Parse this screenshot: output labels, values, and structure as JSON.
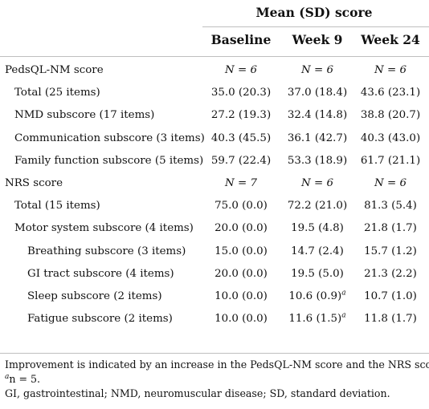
{
  "header": {
    "group": "Mean (SD) score",
    "columns": [
      "Baseline",
      "Week 9",
      "Week 24"
    ]
  },
  "rows": [
    {
      "label": "PedsQL-NM score",
      "indent": 0,
      "values": [
        "N = 6",
        "N = 6",
        "N = 6"
      ],
      "n_row": true
    },
    {
      "label": "Total (25 items)",
      "indent": 1,
      "values": [
        "35.0 (20.3)",
        "37.0 (18.4)",
        "43.6 (23.1)"
      ]
    },
    {
      "label": "NMD subscore (17 items)",
      "indent": 1,
      "values": [
        "27.2 (19.3)",
        "32.4 (14.8)",
        "38.8 (20.7)"
      ]
    },
    {
      "label": "Communication subscore (3 items)",
      "indent": 1,
      "values": [
        "40.3 (45.5)",
        "36.1 (42.7)",
        "40.3 (43.0)"
      ]
    },
    {
      "label": "Family function subscore (5 items)",
      "indent": 1,
      "values": [
        "59.7 (22.4)",
        "53.3 (18.9)",
        "61.7 (21.1)"
      ]
    },
    {
      "label": "NRS score",
      "indent": 0,
      "values": [
        "N = 7",
        "N = 6",
        "N = 6"
      ],
      "n_row": true
    },
    {
      "label": "Total (15 items)",
      "indent": 1,
      "values": [
        "75.0 (0.0)",
        "72.2 (21.0)",
        "81.3 (5.4)"
      ]
    },
    {
      "label": "Motor system subscore (4 items)",
      "indent": 1,
      "values": [
        "20.0 (0.0)",
        "19.5 (4.8)",
        "21.8 (1.7)"
      ]
    },
    {
      "label": "Breathing subscore (3 items)",
      "indent": 2,
      "values": [
        "15.0 (0.0)",
        "14.7 (2.4)",
        "15.7 (1.2)"
      ]
    },
    {
      "label": "GI tract subscore (4 items)",
      "indent": 2,
      "values": [
        "20.0 (0.0)",
        "19.5 (5.0)",
        "21.3 (2.2)"
      ]
    },
    {
      "label": "Sleep subscore (2 items)",
      "indent": 2,
      "values": [
        "10.0 (0.0)",
        "10.6 (0.9)",
        "10.7 (1.0)"
      ],
      "sup": [
        null,
        "a",
        null
      ]
    },
    {
      "label": "Fatigue subscore (2 items)",
      "indent": 2,
      "values": [
        "10.0 (0.0)",
        "11.6 (1.5)",
        "11.8 (1.7)"
      ],
      "sup": [
        null,
        "a",
        null
      ]
    }
  ],
  "footnotes": {
    "note1": "Improvement is indicated by an increase in the PedsQL-NM score and the NRS score.",
    "note2_marker": "a",
    "note2_text": "n = 5.",
    "note3": "GI, gastrointestinal; NMD, neuromuscular disease; SD, standard deviation."
  }
}
